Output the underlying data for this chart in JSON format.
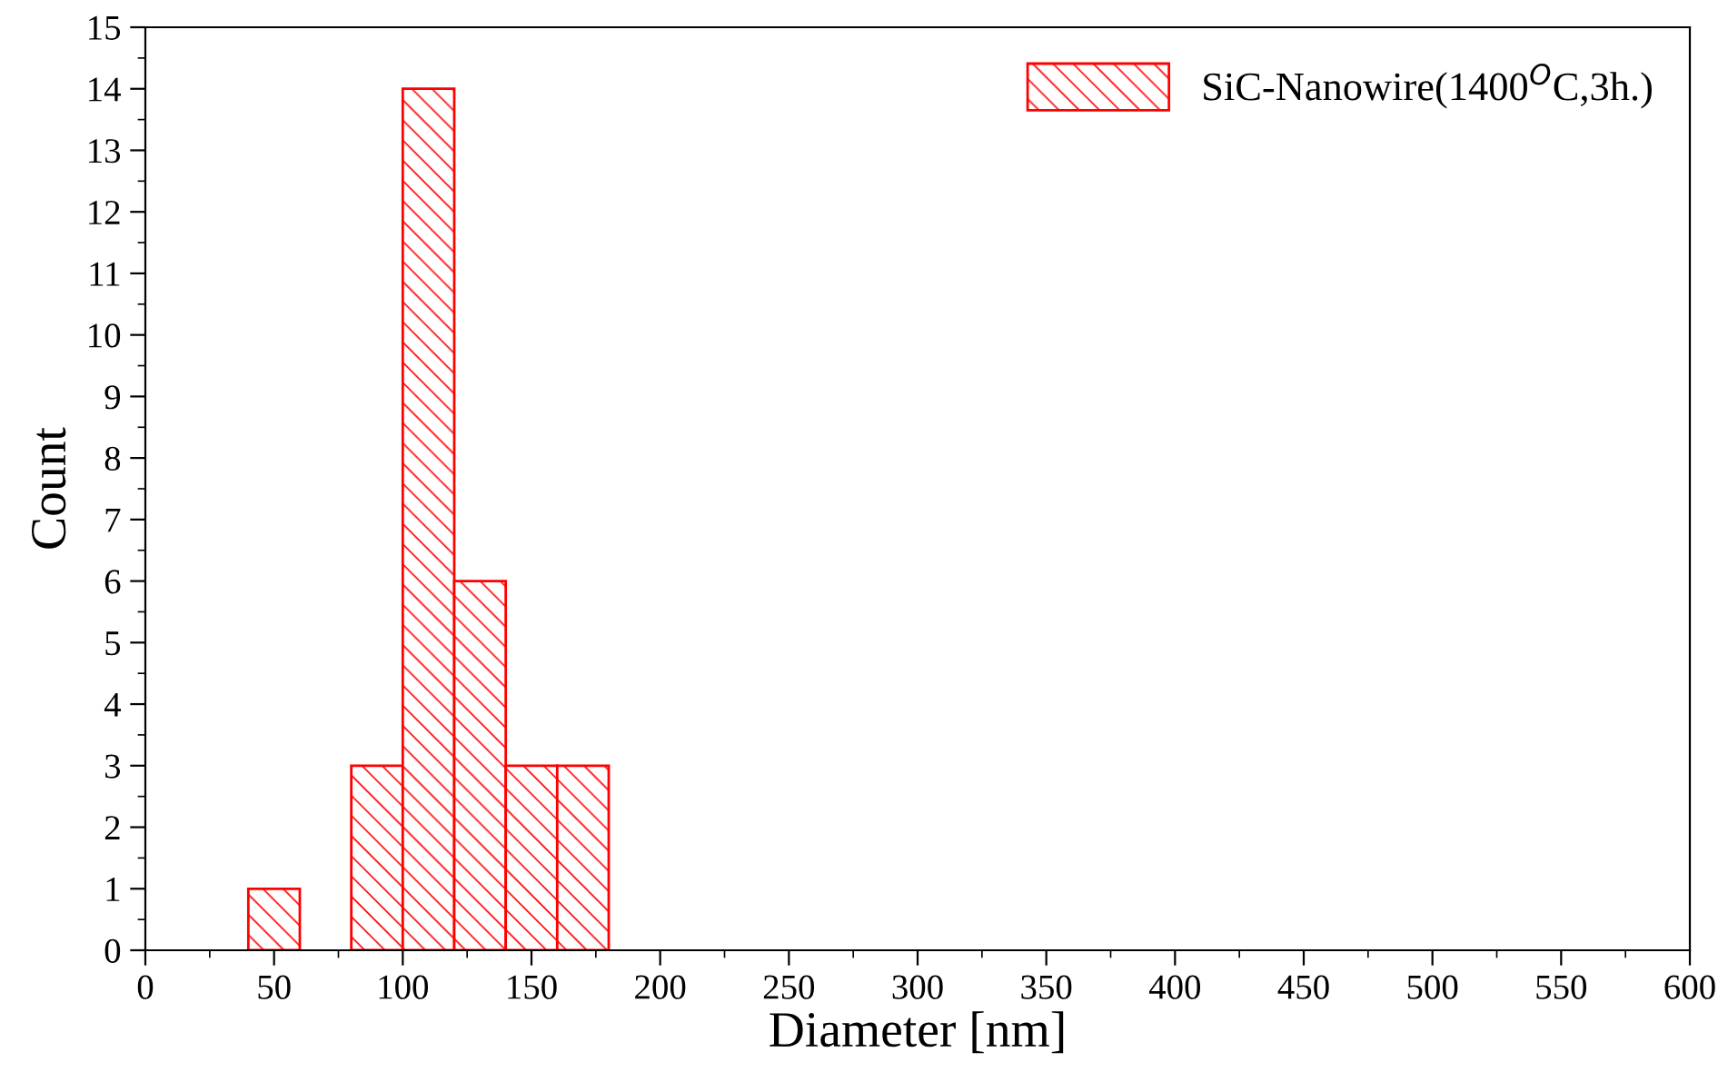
{
  "chart_data": {
    "type": "histogram",
    "xlabel": "Diameter [nm]",
    "ylabel": "Count",
    "bins": [
      40,
      60,
      80,
      100,
      120,
      140,
      160,
      180
    ],
    "series": [
      {
        "name": "SiC-Nanowire(1400$^{O}$C,3h.)",
        "color": "#ff0000",
        "values": [
          1,
          0,
          3,
          14,
          6,
          3,
          3
        ]
      }
    ],
    "xlim": [
      0,
      600
    ],
    "xticks": [
      0,
      50,
      100,
      150,
      200,
      250,
      300,
      350,
      400,
      450,
      500,
      550,
      600
    ],
    "ylim": [
      0,
      15
    ],
    "yticks": [
      0,
      1,
      2,
      3,
      4,
      5,
      6,
      7,
      8,
      9,
      10,
      11,
      12,
      13,
      14,
      15
    ],
    "grid": false,
    "legend": "top right"
  }
}
